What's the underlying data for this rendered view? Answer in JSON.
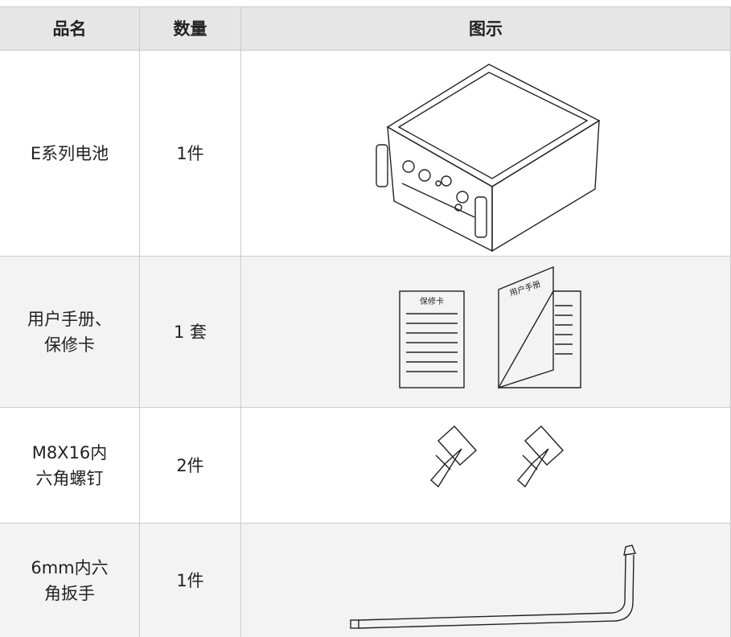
{
  "table": {
    "header": [
      "品名",
      "数量",
      "图示"
    ],
    "rows": [
      {
        "name": [
          "E系列电池"
        ],
        "qty": "1件"
      },
      {
        "name": [
          "用户手册、",
          "保修卡"
        ],
        "qty": "1 套",
        "labels": [
          "保修卡",
          "用户手册"
        ]
      },
      {
        "name": [
          "M8X16内",
          "六角螺钉"
        ],
        "qty": "2件"
      },
      {
        "name": [
          "6mm内六",
          "角扳手"
        ],
        "qty": "1件"
      }
    ]
  }
}
